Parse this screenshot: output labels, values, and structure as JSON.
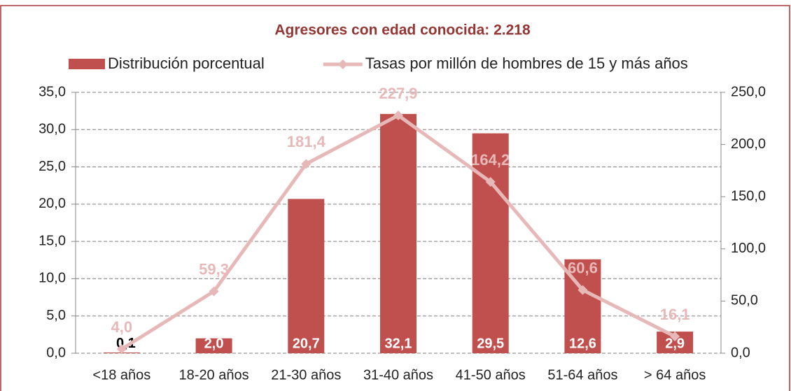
{
  "chart_data": {
    "type": "bar-line",
    "title": "Agresores con edad conocida:  2.218",
    "categories": [
      "<18 años",
      "18-20 años",
      "21-30 años",
      "31-40 años",
      "41-50 años",
      "51-64 años",
      "> 64 años"
    ],
    "series": [
      {
        "name": "Distribución porcentual",
        "type": "bar",
        "color": "#c0504d",
        "axis": "y",
        "values": [
          0.1,
          2.0,
          20.7,
          32.1,
          29.5,
          12.6,
          2.9
        ],
        "value_labels": [
          "0,1",
          "2,0",
          "20,7",
          "32,1",
          "29,5",
          "12,6",
          "2,9"
        ]
      },
      {
        "name": "Tasas por millón de hombres de 15 y más años",
        "type": "line",
        "color": "#e6b9b8",
        "axis": "y2",
        "values": [
          4.0,
          59.3,
          181.4,
          227.9,
          164.2,
          60.6,
          16.1
        ],
        "value_labels": [
          "4,0",
          "59,3",
          "181,4",
          "227,9",
          "164,2",
          "60,6",
          "16,1"
        ]
      }
    ],
    "ylim": [
      0,
      35
    ],
    "yticks": [
      {
        "value": 0,
        "label": "0,0"
      },
      {
        "value": 5,
        "label": "5,0"
      },
      {
        "value": 10,
        "label": "10,0"
      },
      {
        "value": 15,
        "label": "15,0"
      },
      {
        "value": 20,
        "label": "20,0"
      },
      {
        "value": 25,
        "label": "25,0"
      },
      {
        "value": 30,
        "label": "30,0"
      },
      {
        "value": 35,
        "label": "35,0"
      }
    ],
    "y2lim": [
      0,
      250
    ],
    "y2ticks": [
      {
        "value": 0,
        "label": "0,0"
      },
      {
        "value": 50,
        "label": "50,0"
      },
      {
        "value": 100,
        "label": "100,0"
      },
      {
        "value": 150,
        "label": "150,0"
      },
      {
        "value": 200,
        "label": "200,0"
      },
      {
        "value": 250,
        "label": "250,0"
      }
    ],
    "grid": true,
    "legend": "top"
  }
}
